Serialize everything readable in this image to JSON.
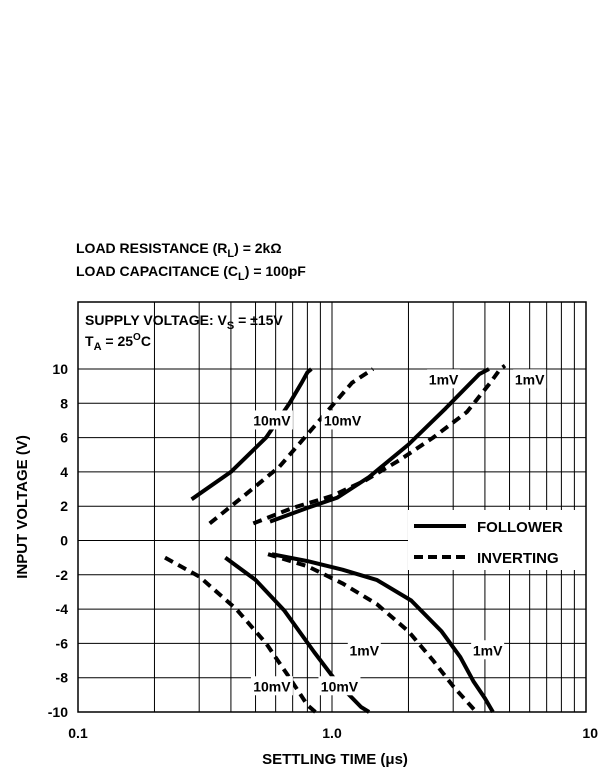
{
  "header": {
    "load_resistance": {
      "text": "LOAD RESISTANCE (R",
      "sub": "L",
      "tail": ") = 2kΩ"
    },
    "load_capacitance": {
      "text": "LOAD CAPACITANCE (C",
      "sub": "L",
      "tail": ") = 100pF"
    },
    "supply_voltage": {
      "text": "SUPPLY VOLTAGE:   V",
      "sub": "S",
      "tail": " = ±15V"
    },
    "temperature": {
      "text": "T",
      "sub": "A",
      "mid": " = 25",
      "sup": "O",
      "tail": "C"
    }
  },
  "legend": {
    "placement": "right-middle",
    "items": [
      "FOLLOWER",
      "INVERTING"
    ]
  },
  "colors": {
    "line": "#000000",
    "background": "#ffffff"
  },
  "chart_data": {
    "type": "line",
    "xscale": "log",
    "xlim": [
      0.1,
      10
    ],
    "ylim": [
      -10,
      10
    ],
    "xlabel": "SETTLING TIME (μs)",
    "ylabel": "INPUT VOLTAGE (V)",
    "x_ticks": [
      0.1,
      1.0,
      10
    ],
    "x_tick_labels": [
      "0.1",
      "1.0",
      "10"
    ],
    "y_ticks": [
      10,
      8,
      6,
      4,
      2,
      0,
      -2,
      -4,
      -6,
      -8,
      -10
    ],
    "y_tick_labels": [
      "10",
      "8",
      "6",
      "4",
      "2",
      "0",
      "-2",
      "-4",
      "-6",
      "-8",
      "-10"
    ],
    "grid": true,
    "series": [
      {
        "name": "FOLLOWER",
        "label": "10mV",
        "style": "solid",
        "x": [
          0.28,
          0.4,
          0.55,
          0.68,
          0.76,
          0.8,
          0.83
        ],
        "y": [
          2.4,
          4,
          6,
          8,
          9.2,
          9.8,
          10
        ]
      },
      {
        "name": "INVERTING",
        "label": "10mV",
        "style": "dashed",
        "x": [
          0.33,
          0.45,
          0.62,
          0.78,
          0.98,
          1.2,
          1.45
        ],
        "y": [
          1,
          2.6,
          4.3,
          6,
          7.7,
          9.2,
          10
        ]
      },
      {
        "name": "FOLLOWER",
        "label": "1mV",
        "style": "solid",
        "x": [
          0.57,
          0.8,
          1.05,
          1.4,
          2.0,
          2.8,
          3.8,
          4.15
        ],
        "y": [
          1.1,
          1.9,
          2.5,
          3.7,
          5.6,
          7.7,
          9.7,
          10
        ]
      },
      {
        "name": "INVERTING",
        "label": "1mV",
        "style": "dashed",
        "x": [
          0.49,
          0.7,
          1.0,
          1.35,
          1.85,
          2.5,
          3.4,
          4.2,
          4.6,
          4.8
        ],
        "y": [
          1,
          1.9,
          2.6,
          3.5,
          4.7,
          6,
          7.5,
          9.2,
          10,
          10.2
        ]
      },
      {
        "name": "FOLLOWER",
        "label": "10mV",
        "style": "solid",
        "x": [
          0.38,
          0.5,
          0.65,
          0.85,
          1.05,
          1.3,
          1.4
        ],
        "y": [
          -1,
          -2.3,
          -4.1,
          -6.5,
          -8.3,
          -9.7,
          -10
        ]
      },
      {
        "name": "INVERTING",
        "label": "10mV",
        "style": "dashed",
        "x": [
          0.22,
          0.3,
          0.42,
          0.55,
          0.68,
          0.8,
          0.86
        ],
        "y": [
          -1,
          -2.1,
          -4,
          -6,
          -8,
          -9.6,
          -10
        ]
      },
      {
        "name": "FOLLOWER",
        "label": "1mV",
        "style": "solid",
        "x": [
          0.58,
          0.8,
          1.1,
          1.5,
          2.05,
          2.7,
          3.2,
          3.6,
          4.0,
          4.3
        ],
        "y": [
          -0.8,
          -1.2,
          -1.7,
          -2.3,
          -3.5,
          -5.3,
          -6.8,
          -8.2,
          -9.2,
          -10
        ]
      },
      {
        "name": "INVERTING",
        "label": "1mV",
        "style": "dashed",
        "x": [
          0.56,
          0.8,
          1.1,
          1.5,
          2.0,
          2.5,
          3.0,
          3.4,
          3.7
        ],
        "y": [
          -0.8,
          -1.5,
          -2.5,
          -3.7,
          -5.3,
          -7,
          -8.5,
          -9.4,
          -10
        ]
      }
    ],
    "annotations": [
      {
        "text": "10mV",
        "x": 0.58,
        "y": 7
      },
      {
        "text": "10mV",
        "x": 1.1,
        "y": 7
      },
      {
        "text": "1mV",
        "x": 2.75,
        "y": 9.4
      },
      {
        "text": "1mV",
        "x": 6.0,
        "y": 9.4
      },
      {
        "text": "1mV",
        "x": 1.34,
        "y": -6.4
      },
      {
        "text": "1mV",
        "x": 4.1,
        "y": -6.4
      },
      {
        "text": "10mV",
        "x": 0.58,
        "y": -8.5
      },
      {
        "text": "10mV",
        "x": 1.07,
        "y": -8.5
      }
    ]
  }
}
